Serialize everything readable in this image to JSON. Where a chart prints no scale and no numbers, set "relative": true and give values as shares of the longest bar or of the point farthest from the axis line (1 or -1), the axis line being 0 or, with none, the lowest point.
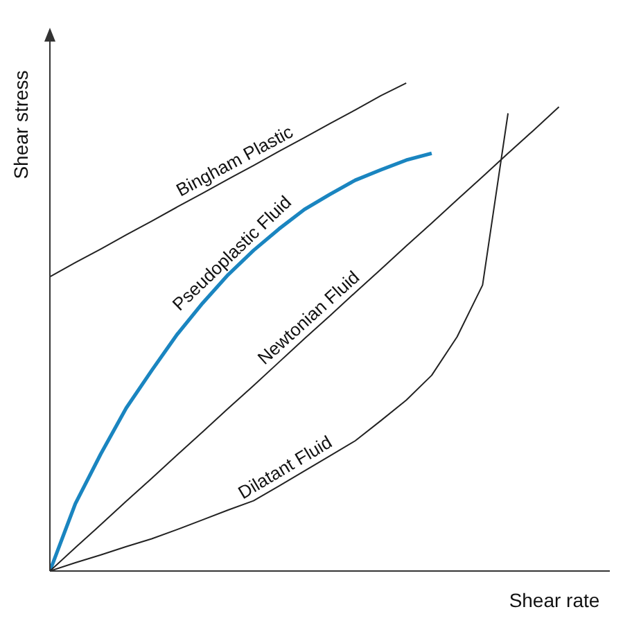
{
  "chart_data": {
    "type": "line",
    "relative": true,
    "xlabel": "Shear rate",
    "ylabel": "Shear stress",
    "marker": "none",
    "grid": false,
    "categories": [
      null,
      null,
      null,
      null,
      null,
      null,
      null,
      null,
      null,
      null,
      null,
      null,
      null,
      null,
      null,
      null,
      null,
      null,
      null,
      null,
      null,
      null,
      null
    ],
    "series": [
      {
        "name": "Bingham Plastic",
        "color": "#222222",
        "values": [
          0.603,
          0.632,
          0.66,
          0.689,
          0.717,
          0.746,
          0.774,
          0.803,
          0.831,
          0.86,
          0.888,
          0.917,
          0.945,
          0.974,
          1.0,
          null,
          null,
          null,
          null,
          null,
          null,
          null,
          null
        ]
      },
      {
        "name": "Pseudoplastic Fluid",
        "color": "#1a85c0",
        "values": [
          0,
          0.138,
          0.24,
          0.334,
          0.411,
          0.485,
          0.549,
          0.607,
          0.657,
          0.701,
          0.741,
          0.772,
          0.801,
          0.822,
          0.842,
          0.856,
          null,
          null,
          null,
          null,
          null,
          null,
          null
        ]
      },
      {
        "name": "Newtonian Fluid",
        "color": "#222222",
        "values": [
          0,
          0.048,
          0.095,
          0.143,
          0.19,
          0.238,
          0.285,
          0.333,
          0.38,
          0.428,
          0.476,
          0.523,
          0.571,
          0.618,
          0.666,
          0.713,
          0.761,
          0.808,
          0.856,
          0.903,
          0.951,
          null,
          null
        ]
      },
      {
        "name": "Dilatant Fluid",
        "color": "#222222",
        "values": [
          0,
          0.017,
          0.033,
          0.05,
          0.066,
          0.085,
          0.105,
          0.125,
          0.144,
          0.174,
          0.205,
          0.236,
          0.267,
          0.308,
          0.35,
          0.401,
          0.48,
          0.586,
          0.938,
          null,
          null,
          null,
          null
        ]
      }
    ]
  }
}
